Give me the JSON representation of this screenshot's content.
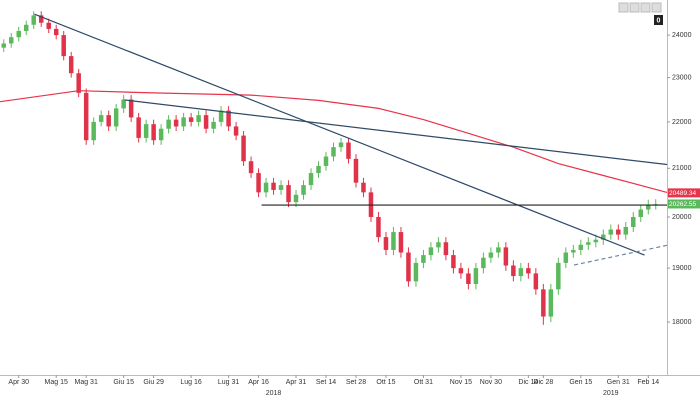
{
  "chart_data": {
    "type": "candlestick",
    "log_scale": true,
    "ylim": [
      17070,
      24860
    ],
    "yticks": [
      18000,
      19000,
      20000,
      21000,
      22000,
      23000,
      24000
    ],
    "xlim": [
      -0.5,
      88.5
    ],
    "xticks": [
      {
        "value": 2,
        "label": "Apr 30"
      },
      {
        "value": 7,
        "label": "Mag 15"
      },
      {
        "value": 11,
        "label": "Mag 31"
      },
      {
        "value": 16,
        "label": "Giu 15"
      },
      {
        "value": 20,
        "label": "Giu 29"
      },
      {
        "value": 25,
        "label": "Lug 16"
      },
      {
        "value": 30,
        "label": "Lug 31"
      },
      {
        "value": 34,
        "label": "Apr 16"
      },
      {
        "value": 39,
        "label": "Apr 31"
      },
      {
        "value": 43,
        "label": "Set 14"
      },
      {
        "value": 47,
        "label": "Set 28"
      },
      {
        "value": 51,
        "label": "Ott 15"
      },
      {
        "value": 56,
        "label": "Ott 31"
      },
      {
        "value": 61,
        "label": "Nov 15"
      },
      {
        "value": 65,
        "label": "Nov 30"
      },
      {
        "value": 70,
        "label": "Dic 14"
      },
      {
        "value": 72,
        "label": "Dic 28"
      },
      {
        "value": 77,
        "label": "Gen 15"
      },
      {
        "value": 82,
        "label": "Gen 31"
      },
      {
        "value": 86,
        "label": "Feb 14"
      }
    ],
    "year_labels": [
      {
        "value": 36,
        "label": "2018"
      },
      {
        "value": 81,
        "label": "2019"
      }
    ],
    "up_color": "#5cb85c",
    "down_color": "#e0334a",
    "open": [
      23700,
      23800,
      23950,
      24100,
      24250,
      24480,
      24300,
      24150,
      24000,
      23500,
      23100,
      22650,
      21600,
      22000,
      22150,
      21900,
      22300,
      22500,
      22100,
      21650,
      21950,
      21600,
      21850,
      22050,
      21900,
      22100,
      22000,
      22150,
      21850,
      22000,
      22250,
      21900,
      21700,
      21150,
      20900,
      20500,
      20700,
      20550,
      20650,
      20300,
      20450,
      20650,
      20900,
      21050,
      21250,
      21450,
      21550,
      21200,
      20700,
      20500,
      20000,
      19600,
      19350,
      19700,
      19300,
      18750,
      19100,
      19250,
      19400,
      19500,
      19250,
      19000,
      18900,
      18700,
      19000,
      19200,
      19300,
      19400,
      19050,
      18850,
      19000,
      18900,
      18600,
      18100,
      18600,
      19100,
      19300,
      19350,
      19450,
      19500,
      19550,
      19650,
      19750,
      19650,
      19800,
      20000,
      20150,
      20250
    ],
    "high": [
      23900,
      24050,
      24200,
      24350,
      24580,
      24580,
      24400,
      24250,
      24100,
      23600,
      23200,
      22750,
      22100,
      22250,
      22250,
      22400,
      22600,
      22600,
      22200,
      22050,
      22050,
      21950,
      22150,
      22150,
      22200,
      22200,
      22250,
      22250,
      22100,
      22350,
      22350,
      22000,
      21800,
      21250,
      21000,
      20800,
      20800,
      20750,
      20750,
      20550,
      20750,
      21000,
      21150,
      21350,
      21550,
      21650,
      21650,
      21300,
      20800,
      20600,
      20100,
      19700,
      19800,
      19800,
      19400,
      19200,
      19350,
      19500,
      19600,
      19600,
      19350,
      19100,
      19000,
      19100,
      19300,
      19400,
      19500,
      19500,
      19150,
      19100,
      19100,
      19000,
      18700,
      18700,
      19200,
      19400,
      19450,
      19550,
      19600,
      19650,
      19750,
      19850,
      19850,
      19900,
      20100,
      20250,
      20350,
      20360
    ],
    "low": [
      23600,
      23700,
      23850,
      24000,
      24150,
      24200,
      24050,
      23900,
      23400,
      23000,
      22550,
      21500,
      21500,
      21900,
      21800,
      21800,
      22200,
      22000,
      21550,
      21550,
      21500,
      21500,
      21750,
      21800,
      21800,
      21900,
      21900,
      21750,
      21750,
      21900,
      21800,
      21600,
      21050,
      20800,
      20400,
      20400,
      20450,
      20450,
      20200,
      20200,
      20350,
      20550,
      20800,
      20950,
      21150,
      21350,
      21100,
      20600,
      20400,
      19900,
      19500,
      19250,
      19250,
      19200,
      18650,
      18650,
      19000,
      19150,
      19300,
      19150,
      18900,
      18800,
      18600,
      18600,
      18900,
      19100,
      19200,
      18950,
      18750,
      18750,
      18800,
      18500,
      17950,
      18000,
      18500,
      19000,
      19200,
      19250,
      19350,
      19400,
      19450,
      19550,
      19550,
      19550,
      19700,
      19900,
      20050,
      20150
    ],
    "close": [
      23800,
      23950,
      24100,
      24250,
      24480,
      24300,
      24150,
      24000,
      23500,
      23100,
      22650,
      21600,
      22000,
      22150,
      21900,
      22300,
      22500,
      22100,
      21650,
      21950,
      21600,
      21850,
      22050,
      21900,
      22100,
      22000,
      22150,
      21850,
      22000,
      22250,
      21900,
      21700,
      21150,
      20900,
      20500,
      20700,
      20550,
      20650,
      20300,
      20450,
      20650,
      20900,
      21050,
      21250,
      21450,
      21550,
      21200,
      20700,
      20500,
      20000,
      19600,
      19350,
      19700,
      19300,
      18750,
      19100,
      19250,
      19400,
      19500,
      19250,
      19000,
      18900,
      18700,
      19000,
      19200,
      19300,
      19400,
      19050,
      18850,
      19000,
      18900,
      18600,
      18100,
      18600,
      19100,
      19300,
      19350,
      19450,
      19500,
      19550,
      19650,
      19750,
      19650,
      19800,
      20000,
      20150,
      20250,
      20260
    ],
    "moving_average": {
      "color": "#e8334a",
      "x": [
        -0.5,
        10,
        20,
        33,
        42,
        50,
        56,
        62,
        68,
        74,
        80,
        88.5
      ],
      "values": [
        22450,
        22700,
        22650,
        22600,
        22480,
        22300,
        22050,
        21750,
        21450,
        21100,
        20850,
        20500
      ]
    },
    "trendlines": [
      {
        "x": [
          4.1,
          85.5
        ],
        "y": [
          24510,
          19250
        ],
        "color": "#2e4a68",
        "dashed": false
      },
      {
        "x": [
          16.1,
          88.5
        ],
        "y": [
          22490,
          21080
        ],
        "color": "#2e4a68",
        "dashed": false
      },
      {
        "x": [
          34.4,
          88.5
        ],
        "y": [
          20240,
          20240
        ],
        "color": "#222222",
        "dashed": false
      },
      {
        "x": [
          76.1,
          88.5
        ],
        "y": [
          19060,
          19440
        ],
        "color": "#6a86a8",
        "dashed": true
      }
    ],
    "price_labels": [
      {
        "value": 20489.34,
        "color": "#e8334a"
      },
      {
        "value": 20262.55,
        "color": "#5cb85c"
      }
    ],
    "toolbar_badge": "0"
  }
}
